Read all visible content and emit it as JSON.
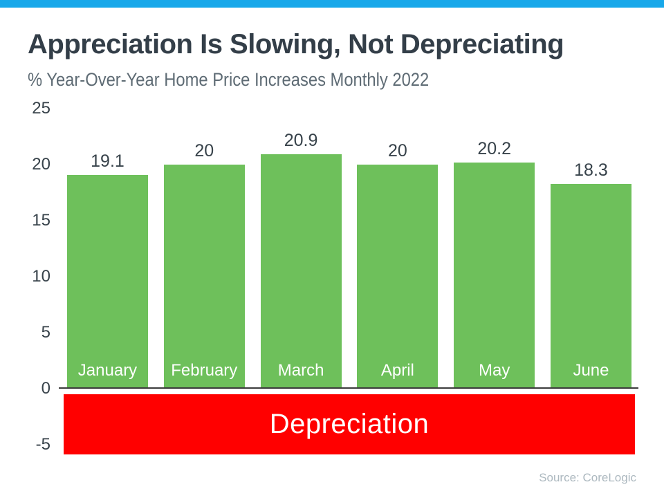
{
  "page": {
    "title": "Appreciation Is Slowing, Not Depreciating",
    "subtitle": "% Year-Over-Year Home Price Increases Monthly 2022",
    "source": "Source: CoreLogic"
  },
  "depreciation_label": "Depreciation",
  "colors": {
    "top_accent": "#18A8EA",
    "bar_green": "#6EC05B",
    "depreciation_red": "#FF0000",
    "title_text": "#333E48",
    "subtitle_text": "#5E6B74",
    "axis_text": "#37424A",
    "source_text": "#ACB8BF"
  },
  "chart_data": {
    "type": "bar",
    "title": "Appreciation Is Slowing, Not Depreciating",
    "subtitle": "% Year-Over-Year Home Price Increases Monthly 2022",
    "categories": [
      "January",
      "February",
      "March",
      "April",
      "May",
      "June"
    ],
    "values": [
      19.1,
      20,
      20.9,
      20,
      20.2,
      18.3
    ],
    "value_labels": [
      "19.1",
      "20",
      "20.9",
      "20",
      "20.2",
      "18.3"
    ],
    "xlabel": "",
    "ylabel": "",
    "ylim": [
      -5,
      25
    ],
    "yticks": [
      25,
      20,
      15,
      10,
      5,
      0,
      -5
    ],
    "grid": false,
    "legend": false,
    "bar_color": "#6EC05B",
    "annotations": [
      {
        "text": "Depreciation",
        "region": "below-zero-band",
        "band_range": [
          -5,
          0
        ],
        "color": "#FF0000"
      }
    ],
    "source": "Source: CoreLogic"
  }
}
